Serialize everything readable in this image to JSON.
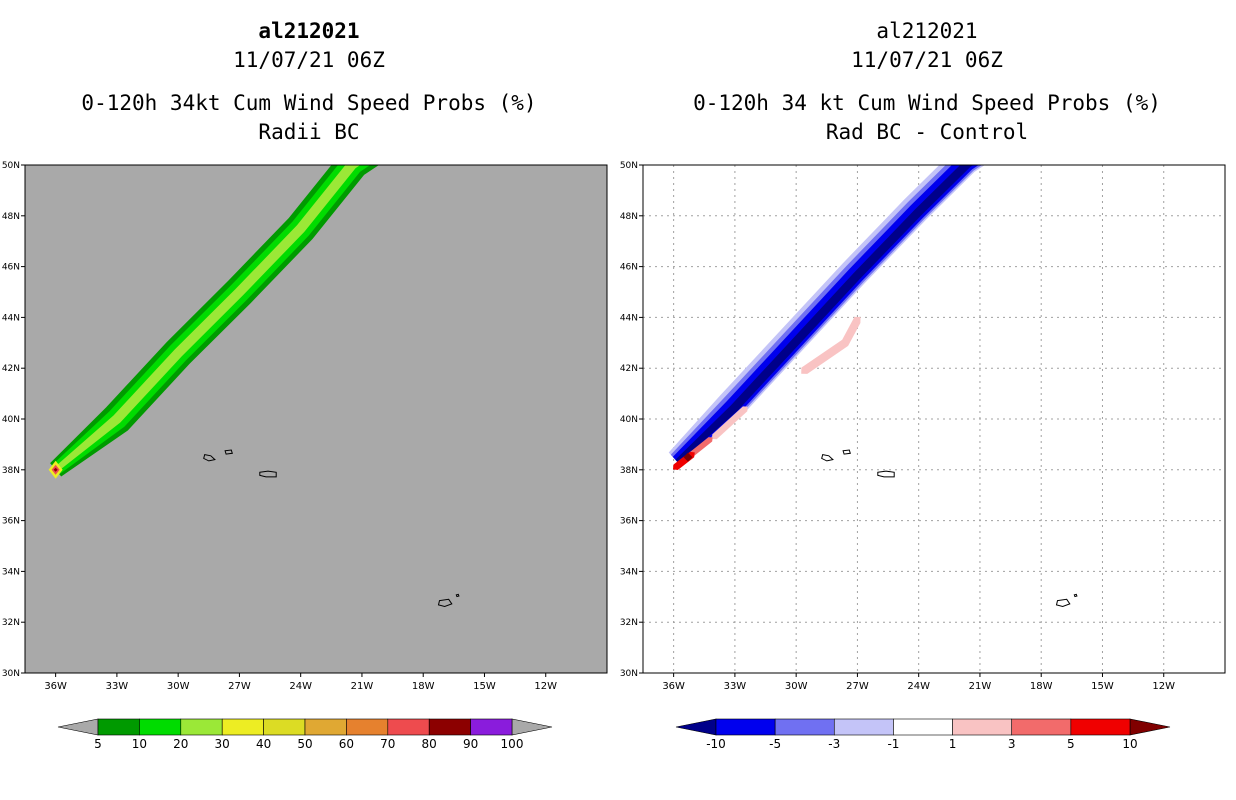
{
  "chart_data": [
    {
      "type": "heatmap",
      "storm_id": "al212021",
      "datetime": "11/07/21 06Z",
      "title": "0-120h 34kt Cum Wind Speed Probs (%)",
      "subtitle": "Radii BC",
      "x_axis": {
        "range": [
          -37.5,
          -9.0
        ],
        "ticks": [
          -36,
          -33,
          -30,
          -27,
          -24,
          -21,
          -18,
          -15,
          -12
        ],
        "tick_labels": [
          "36W",
          "33W",
          "30W",
          "27W",
          "24W",
          "21W",
          "18W",
          "15W",
          "12W"
        ]
      },
      "y_axis": {
        "range": [
          30,
          50
        ],
        "ticks": [
          30,
          32,
          34,
          36,
          38,
          40,
          42,
          44,
          46,
          48,
          50
        ],
        "tick_labels": [
          "30N",
          "32N",
          "34N",
          "36N",
          "38N",
          "40N",
          "42N",
          "44N",
          "46N",
          "48N",
          "50N"
        ]
      },
      "grid": false,
      "background": "#a9a9a9",
      "colorbar": {
        "levels": [
          "5",
          "10",
          "20",
          "30",
          "40",
          "50",
          "60",
          "70",
          "80",
          "90",
          "100"
        ],
        "colors": [
          "#009a00",
          "#00dc00",
          "#9be837",
          "#eded23",
          "#dcdc24",
          "#e0a833",
          "#e6812e",
          "#ee4b4e",
          "#8c0000",
          "#8a1cdc"
        ],
        "extend_colors": [
          "#a9a9a9",
          "#a9a9a9"
        ]
      },
      "swath_bands": [
        {
          "min": 5,
          "color": "#009a00",
          "width_deg": 1.55
        },
        {
          "min": 10,
          "color": "#00dc00",
          "width_deg": 1.05
        },
        {
          "min": 20,
          "color": "#9be837",
          "width_deg": 0.48
        }
      ],
      "track": [
        [
          -36.0,
          38.0
        ],
        [
          -33.0,
          40.0
        ],
        [
          -30.0,
          42.6
        ],
        [
          -27.0,
          45.0
        ],
        [
          -24.0,
          47.5
        ],
        [
          -21.5,
          50.0
        ]
      ],
      "point_max": {
        "lon": -36.0,
        "lat": 38.0,
        "value_range": "80-90"
      }
    },
    {
      "type": "heatmap",
      "storm_id": "al212021",
      "datetime": "11/07/21 06Z",
      "title": "0-120h 34 kt Cum Wind Speed Probs (%)",
      "subtitle": "Rad BC - Control",
      "x_axis": {
        "range": [
          -37.5,
          -9.0
        ],
        "ticks": [
          -36,
          -33,
          -30,
          -27,
          -24,
          -21,
          -18,
          -15,
          -12
        ],
        "tick_labels": [
          "36W",
          "33W",
          "30W",
          "27W",
          "24W",
          "21W",
          "18W",
          "15W",
          "12W"
        ]
      },
      "y_axis": {
        "range": [
          30,
          50
        ],
        "ticks": [
          30,
          32,
          34,
          36,
          38,
          40,
          42,
          44,
          46,
          48,
          50
        ],
        "tick_labels": [
          "30N",
          "32N",
          "34N",
          "36N",
          "38N",
          "40N",
          "42N",
          "44N",
          "46N",
          "48N",
          "50N"
        ]
      },
      "grid": true,
      "background": "#ffffff",
      "colorbar": {
        "levels": [
          "-10",
          "-5",
          "-3",
          "-1",
          "1",
          "3",
          "5",
          "10"
        ],
        "colors": [
          "#0000ee",
          "#7070f2",
          "#c4c4f8",
          "#ffffff",
          "#f9c3c3",
          "#f26b6b",
          "#f00000"
        ],
        "extend_colors": [
          "#00008a",
          "#800000"
        ]
      },
      "diff_bands": [
        {
          "range": "-1 to -3",
          "color": "#c4c4f8",
          "width_deg": 1.45,
          "offset_deg": 0.25
        },
        {
          "range": "-3 to -5",
          "color": "#7070f2",
          "width_deg": 1.15,
          "offset_deg": 0.18
        },
        {
          "range": "-5 to -10",
          "color": "#0000ee",
          "width_deg": 0.85,
          "offset_deg": 0.12
        },
        {
          "range": "< -10",
          "color": "#00008a",
          "width_deg": 0.42,
          "offset_deg": 0.05
        }
      ],
      "positive_patches": [
        {
          "range": "1 to 3",
          "color": "#f9c3c3",
          "track": [
            [
              -29.6,
              41.9
            ],
            [
              -27.6,
              43.0
            ],
            [
              -27.0,
              43.9
            ]
          ],
          "width_deg": 0.42
        },
        {
          "range": "1 to 3",
          "color": "#f9c3c3",
          "track": [
            [
              -34.0,
              39.3
            ],
            [
              -32.5,
              40.4
            ]
          ],
          "width_deg": 0.32
        },
        {
          "range": "3 to 5",
          "color": "#f26b6b",
          "track": [
            [
              -35.6,
              38.3
            ],
            [
              -34.2,
              39.2
            ]
          ],
          "width_deg": 0.28
        },
        {
          "range": "5 to 10",
          "color": "#f00000",
          "track": [
            [
              -35.9,
              38.1
            ],
            [
              -35.1,
              38.6
            ]
          ],
          "width_deg": 0.34
        },
        {
          "range": "> 10",
          "color": "#800000",
          "track": [
            [
              -35.3,
              38.5
            ]
          ],
          "width_deg": 0.22
        }
      ],
      "track": [
        [
          -35.8,
          38.3
        ],
        [
          -33.0,
          40.4
        ],
        [
          -30.0,
          43.0
        ],
        [
          -27.0,
          45.6
        ],
        [
          -24.0,
          48.1
        ],
        [
          -21.6,
          50.0
        ]
      ]
    }
  ],
  "islands": [
    {
      "name": "azores-flores-corvo",
      "points": [
        [
          -28.7,
          38.6
        ],
        [
          -28.4,
          38.55
        ],
        [
          -28.2,
          38.4
        ],
        [
          -28.5,
          38.35
        ],
        [
          -28.75,
          38.45
        ]
      ]
    },
    {
      "name": "azores-central",
      "points": [
        [
          -27.7,
          38.75
        ],
        [
          -27.4,
          38.78
        ],
        [
          -27.35,
          38.65
        ],
        [
          -27.65,
          38.62
        ]
      ]
    },
    {
      "name": "azores-sao-miguel",
      "points": [
        [
          -26.0,
          37.9
        ],
        [
          -25.6,
          37.95
        ],
        [
          -25.2,
          37.9
        ],
        [
          -25.2,
          37.72
        ],
        [
          -25.7,
          37.72
        ],
        [
          -26.0,
          37.78
        ]
      ]
    },
    {
      "name": "madeira",
      "points": [
        [
          -17.2,
          32.85
        ],
        [
          -16.75,
          32.9
        ],
        [
          -16.6,
          32.72
        ],
        [
          -16.95,
          32.62
        ],
        [
          -17.25,
          32.68
        ]
      ]
    },
    {
      "name": "porto-santo",
      "points": [
        [
          -16.38,
          33.08
        ],
        [
          -16.28,
          33.1
        ],
        [
          -16.25,
          33.03
        ],
        [
          -16.35,
          33.01
        ]
      ]
    }
  ]
}
